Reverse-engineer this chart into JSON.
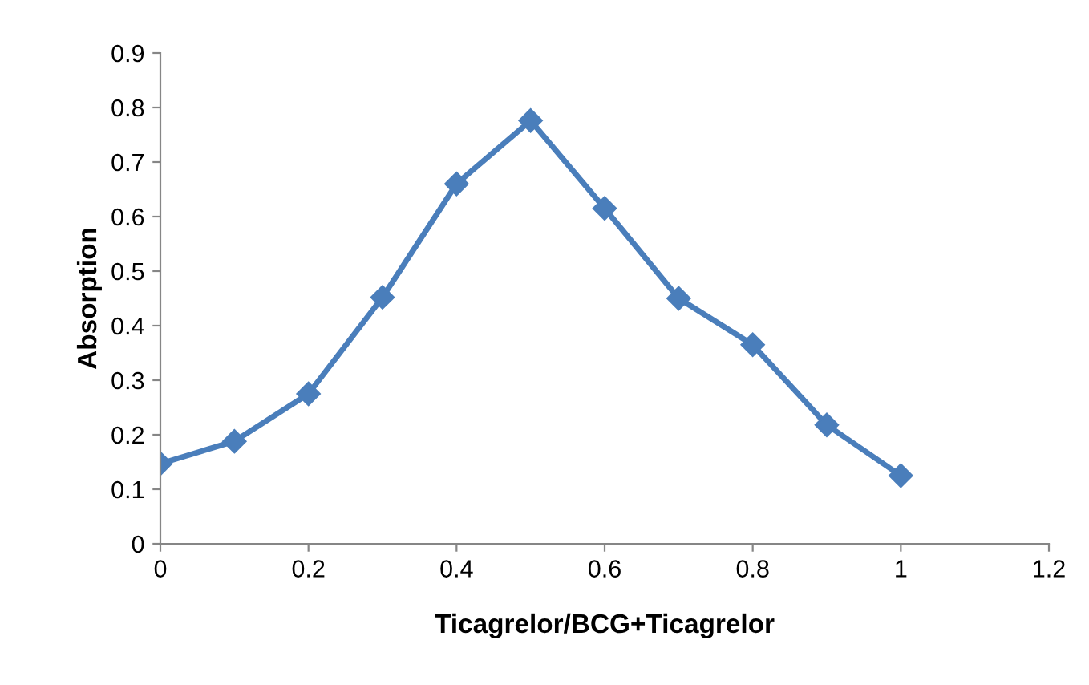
{
  "chart_data": {
    "type": "line",
    "xlabel": "Ticagrelor/BCG+Ticagrelor",
    "ylabel": "Absorption",
    "x": [
      0,
      0.1,
      0.2,
      0.3,
      0.4,
      0.5,
      0.6,
      0.7,
      0.8,
      0.9,
      1
    ],
    "series": [
      {
        "color": "#4a7ebb",
        "values": [
          0.147,
          0.188,
          0.275,
          0.452,
          0.66,
          0.776,
          0.615,
          0.45,
          0.365,
          0.218,
          0.125
        ]
      }
    ],
    "xlim": [
      0,
      1.2
    ],
    "xticks": [
      0,
      0.2,
      0.4,
      0.6,
      0.8,
      1,
      1.2
    ],
    "ylim": [
      0,
      0.9
    ],
    "yticks": [
      0,
      0.1,
      0.2,
      0.3,
      0.4,
      0.5,
      0.6,
      0.7,
      0.8,
      0.9
    ],
    "grid": false,
    "legend": false,
    "marker": "diamond",
    "line_style": "solid"
  }
}
